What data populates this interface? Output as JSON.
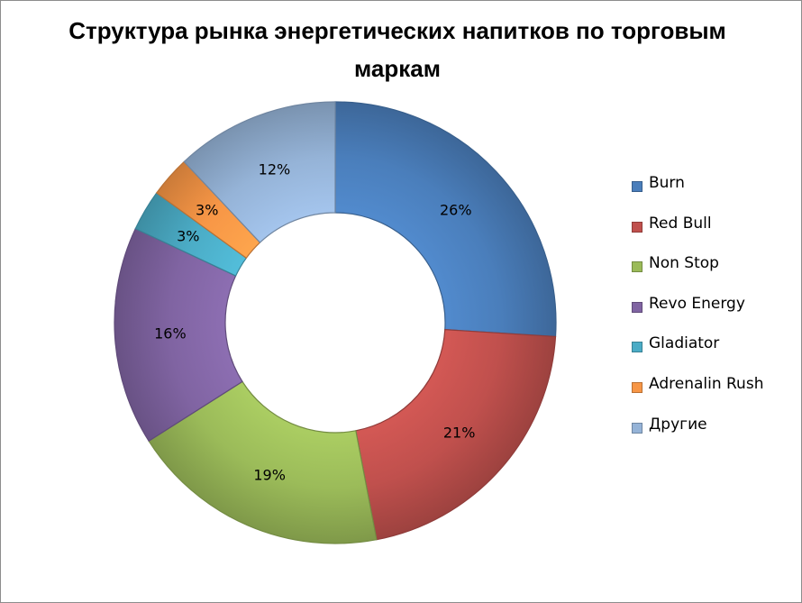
{
  "chart_data": {
    "type": "pie",
    "title": "Структура рынка энергетических напитков по торговым маркам",
    "categories": [
      "Burn",
      "Red Bull",
      "Non Stop",
      "Revo Energy",
      "Gladiator",
      "Adrenalin Rush",
      "Другие"
    ],
    "values": [
      26,
      21,
      19,
      16,
      3,
      3,
      12
    ],
    "data_labels": [
      "26%",
      "21%",
      "19%",
      "16%",
      "3%",
      "3%",
      "12%"
    ],
    "colors": [
      "#4a7ebb",
      "#c0504d",
      "#9bbb59",
      "#8064a2",
      "#4bacc6",
      "#f79646",
      "#95b3d7"
    ],
    "legend": "right",
    "donut": true
  }
}
